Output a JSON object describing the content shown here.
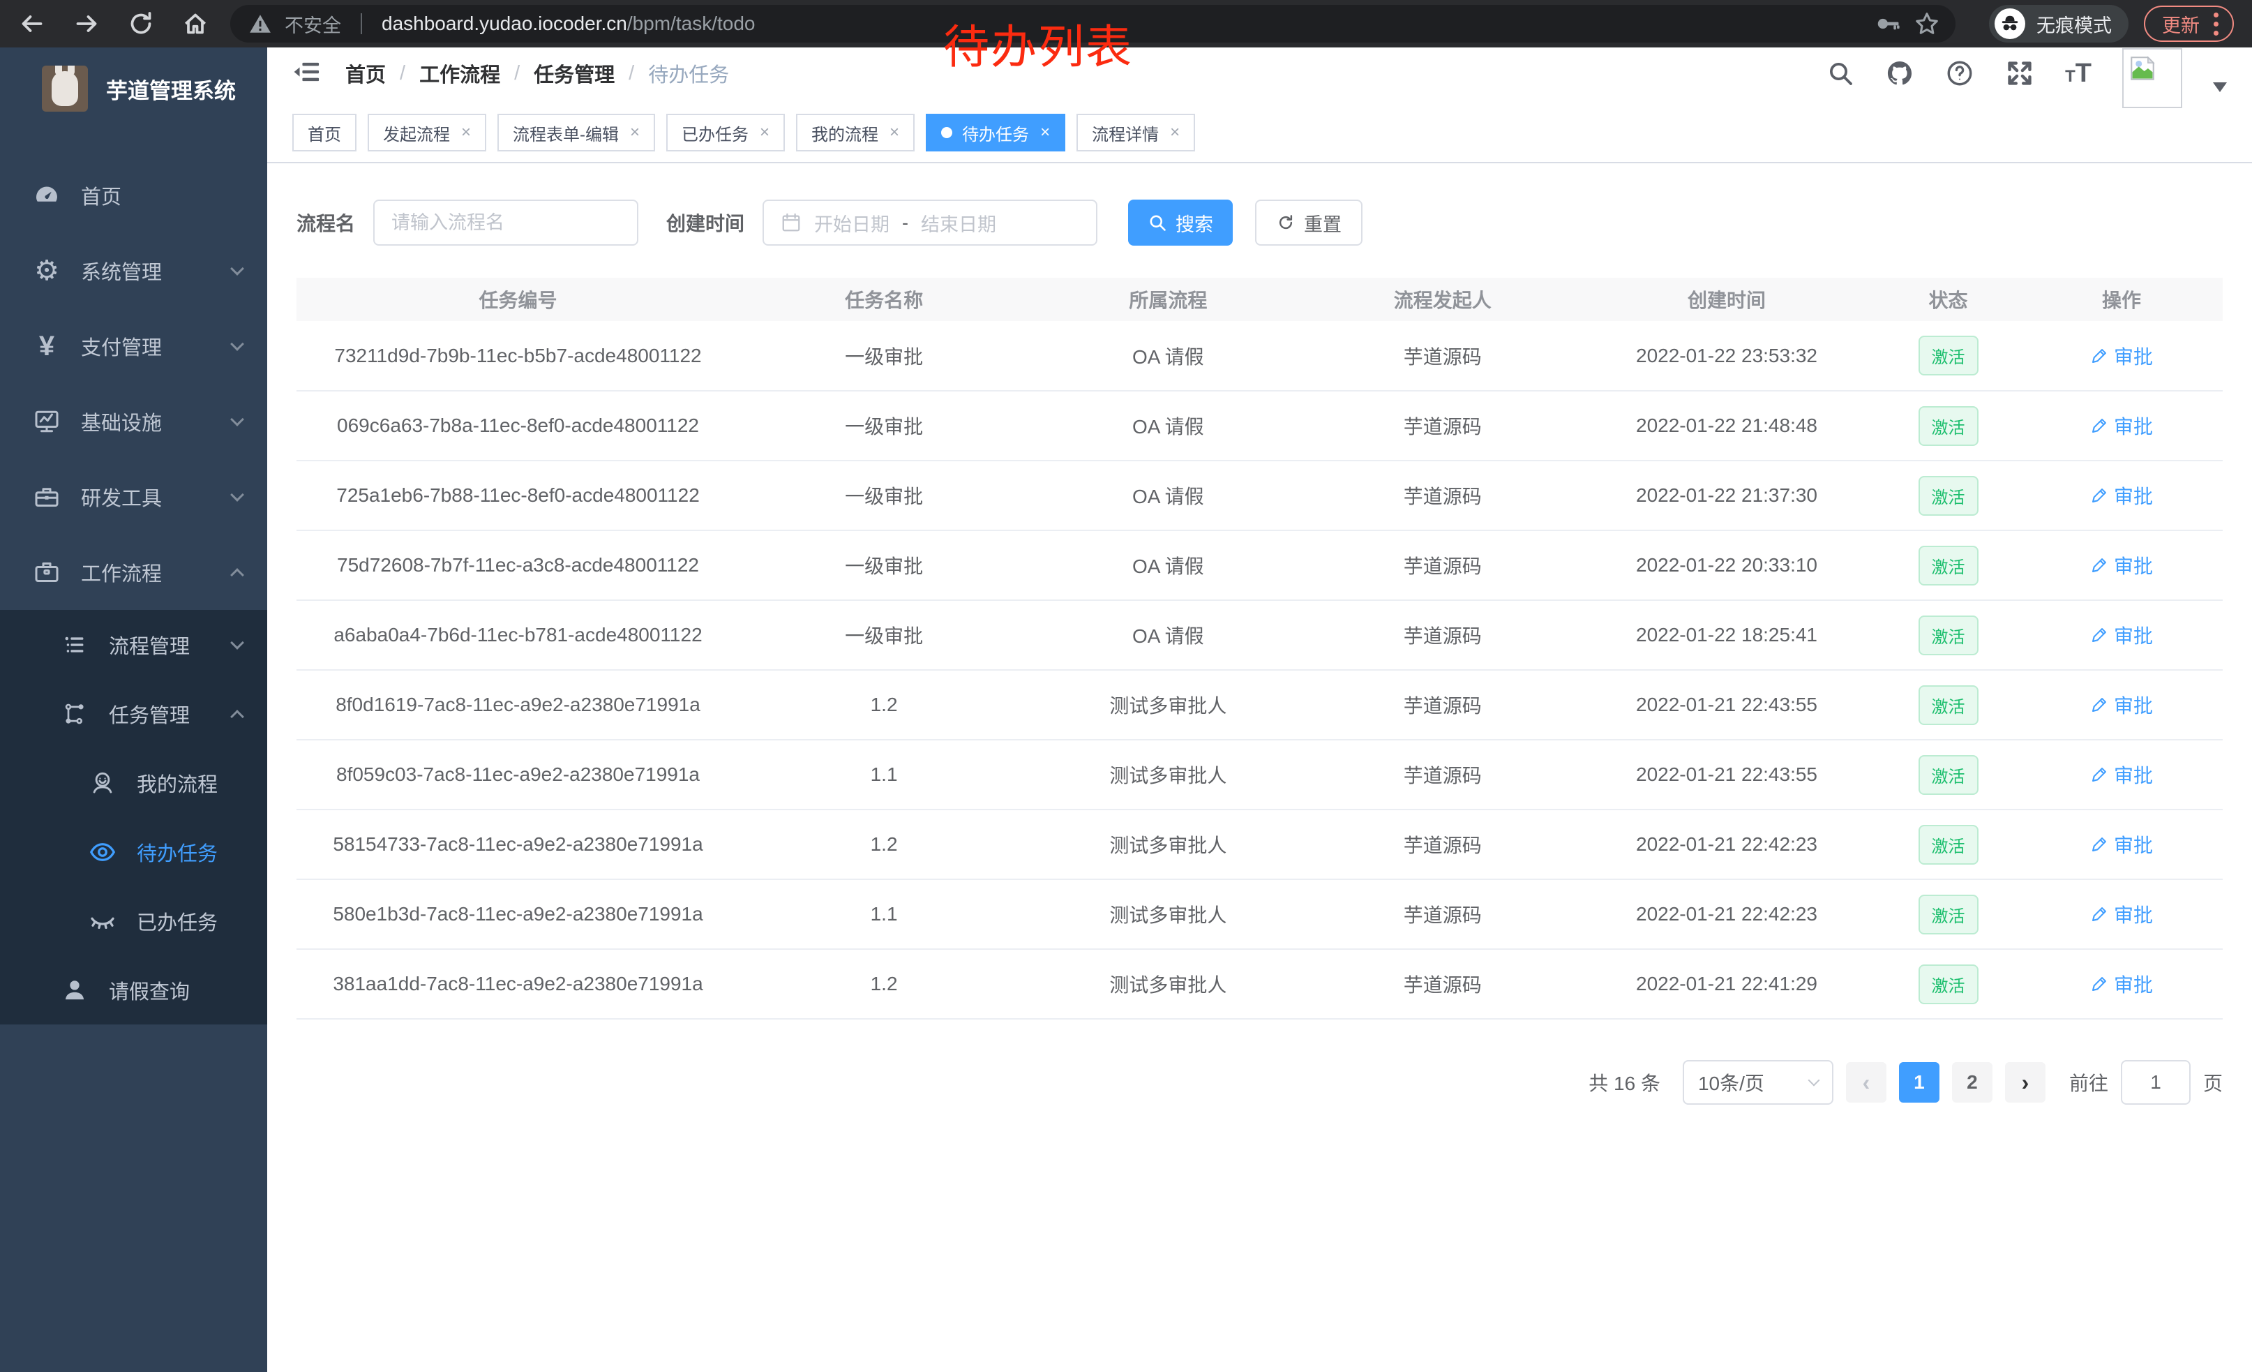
{
  "browser": {
    "security_label": "不安全",
    "url_host": "dashboard.yudao.iocoder.cn",
    "url_path": "/bpm/task/todo",
    "incognito_label": "无痕模式",
    "update_label": "更新"
  },
  "annotation": {
    "text": "待办列表",
    "color": "#fb2b10"
  },
  "sidebar": {
    "app_title": "芋道管理系统",
    "items": [
      {
        "label": "首页",
        "icon": "dashboard-icon",
        "level": 1
      },
      {
        "label": "系统管理",
        "icon": "gear-icon",
        "level": 1,
        "chevron": "down"
      },
      {
        "label": "支付管理",
        "icon": "yen-icon",
        "level": 1,
        "chevron": "down"
      },
      {
        "label": "基础设施",
        "icon": "monitor-icon",
        "level": 1,
        "chevron": "down"
      },
      {
        "label": "研发工具",
        "icon": "toolbox-icon",
        "level": 1,
        "chevron": "down"
      },
      {
        "label": "工作流程",
        "icon": "briefcase-icon",
        "level": 1,
        "chevron": "up"
      },
      {
        "label": "流程管理",
        "icon": "list-icon",
        "level": 2,
        "chevron": "down",
        "sub": true
      },
      {
        "label": "任务管理",
        "icon": "flow-icon",
        "level": 2,
        "chevron": "up",
        "sub": true
      },
      {
        "label": "我的流程",
        "icon": "user-smile-icon",
        "level": 3,
        "sub": true
      },
      {
        "label": "待办任务",
        "icon": "eye-icon",
        "level": 3,
        "sub": true,
        "active": true
      },
      {
        "label": "已办任务",
        "icon": "eye-closed-icon",
        "level": 3,
        "sub": true
      },
      {
        "label": "请假查询",
        "icon": "user-icon",
        "level": 2,
        "sub": true
      }
    ]
  },
  "breadcrumb": {
    "items": [
      "首页",
      "工作流程",
      "任务管理",
      "待办任务"
    ],
    "separator": "/"
  },
  "tabs": [
    {
      "label": "首页"
    },
    {
      "label": "发起流程",
      "closable": true
    },
    {
      "label": "流程表单-编辑",
      "closable": true
    },
    {
      "label": "已办任务",
      "closable": true
    },
    {
      "label": "我的流程",
      "closable": true
    },
    {
      "label": "待办任务",
      "closable": true,
      "active": true
    },
    {
      "label": "流程详情",
      "closable": true
    }
  ],
  "filters": {
    "name_label": "流程名",
    "name_placeholder": "请输入流程名",
    "time_label": "创建时间",
    "start_placeholder": "开始日期",
    "range_separator": "-",
    "end_placeholder": "结束日期",
    "search_label": "搜索",
    "reset_label": "重置"
  },
  "table": {
    "columns": [
      "任务编号",
      "任务名称",
      "所属流程",
      "流程发起人",
      "创建时间",
      "状态",
      "操作"
    ],
    "rows": [
      {
        "id": "73211d9d-7b9b-11ec-b5b7-acde48001122",
        "name": "一级审批",
        "process": "OA 请假",
        "initiator": "芋道源码",
        "created": "2022-01-22 23:53:32",
        "status": "激活",
        "action": "审批"
      },
      {
        "id": "069c6a63-7b8a-11ec-8ef0-acde48001122",
        "name": "一级审批",
        "process": "OA 请假",
        "initiator": "芋道源码",
        "created": "2022-01-22 21:48:48",
        "status": "激活",
        "action": "审批"
      },
      {
        "id": "725a1eb6-7b88-11ec-8ef0-acde48001122",
        "name": "一级审批",
        "process": "OA 请假",
        "initiator": "芋道源码",
        "created": "2022-01-22 21:37:30",
        "status": "激活",
        "action": "审批"
      },
      {
        "id": "75d72608-7b7f-11ec-a3c8-acde48001122",
        "name": "一级审批",
        "process": "OA 请假",
        "initiator": "芋道源码",
        "created": "2022-01-22 20:33:10",
        "status": "激活",
        "action": "审批"
      },
      {
        "id": "a6aba0a4-7b6d-11ec-b781-acde48001122",
        "name": "一级审批",
        "process": "OA 请假",
        "initiator": "芋道源码",
        "created": "2022-01-22 18:25:41",
        "status": "激活",
        "action": "审批"
      },
      {
        "id": "8f0d1619-7ac8-11ec-a9e2-a2380e71991a",
        "name": "1.2",
        "process": "测试多审批人",
        "initiator": "芋道源码",
        "created": "2022-01-21 22:43:55",
        "status": "激活",
        "action": "审批"
      },
      {
        "id": "8f059c03-7ac8-11ec-a9e2-a2380e71991a",
        "name": "1.1",
        "process": "测试多审批人",
        "initiator": "芋道源码",
        "created": "2022-01-21 22:43:55",
        "status": "激活",
        "action": "审批"
      },
      {
        "id": "58154733-7ac8-11ec-a9e2-a2380e71991a",
        "name": "1.2",
        "process": "测试多审批人",
        "initiator": "芋道源码",
        "created": "2022-01-21 22:42:23",
        "status": "激活",
        "action": "审批"
      },
      {
        "id": "580e1b3d-7ac8-11ec-a9e2-a2380e71991a",
        "name": "1.1",
        "process": "测试多审批人",
        "initiator": "芋道源码",
        "created": "2022-01-21 22:42:23",
        "status": "激活",
        "action": "审批"
      },
      {
        "id": "381aa1dd-7ac8-11ec-a9e2-a2380e71991a",
        "name": "1.2",
        "process": "测试多审批人",
        "initiator": "芋道源码",
        "created": "2022-01-21 22:41:29",
        "status": "激活",
        "action": "审批"
      }
    ]
  },
  "pagination": {
    "total_label": "共 16 条",
    "page_size_label": "10条/页",
    "pages": [
      "1",
      "2"
    ],
    "active_page": "1",
    "goto_label": "前往",
    "goto_value": "1",
    "page_suffix": "页"
  },
  "colors": {
    "accent": "#409eff",
    "success_text": "#1dbf6e",
    "success_bg": "#e7f9ef",
    "sidebar_bg": "#304156",
    "submenu_bg": "#1f2d3d",
    "update_accent": "#f28b82"
  }
}
